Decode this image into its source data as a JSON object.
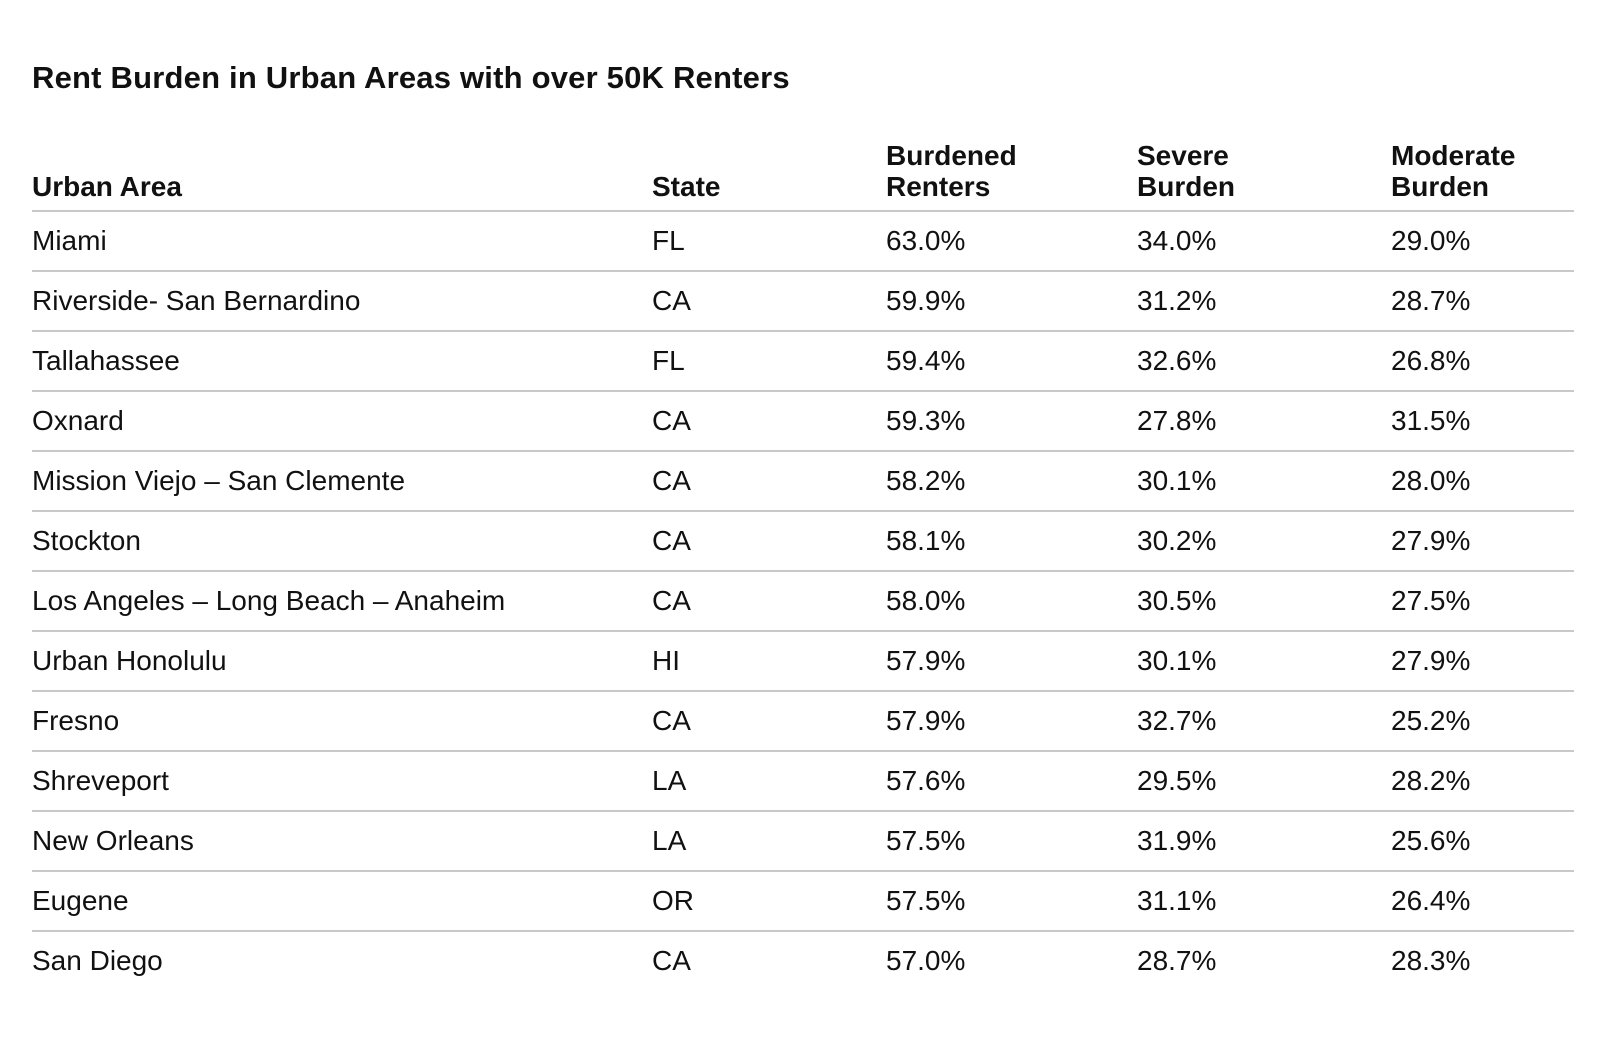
{
  "title": "Rent Burden in Urban Areas with over 50K Renters",
  "table": {
    "headers": {
      "urban_area": "Urban Area",
      "state": "State",
      "burdened_line1": "Burdened",
      "burdened_line2": "Renters",
      "severe_line1": "Severe",
      "severe_line2": "Burden",
      "moderate_line1": "Moderate",
      "moderate_line2": "Burden"
    },
    "rows": [
      {
        "area": "Miami",
        "state": "FL",
        "burdened": "63.0%",
        "severe": "34.0%",
        "moderate": "29.0%"
      },
      {
        "area": "Riverside- San Bernardino",
        "state": "CA",
        "burdened": "59.9%",
        "severe": "31.2%",
        "moderate": "28.7%"
      },
      {
        "area": "Tallahassee",
        "state": "FL",
        "burdened": "59.4%",
        "severe": "32.6%",
        "moderate": "26.8%"
      },
      {
        "area": "Oxnard",
        "state": "CA",
        "burdened": "59.3%",
        "severe": "27.8%",
        "moderate": "31.5%"
      },
      {
        "area": "Mission Viejo – San Clemente",
        "state": "CA",
        "burdened": "58.2%",
        "severe": "30.1%",
        "moderate": "28.0%"
      },
      {
        "area": "Stockton",
        "state": "CA",
        "burdened": "58.1%",
        "severe": "30.2%",
        "moderate": "27.9%"
      },
      {
        "area": "Los Angeles – Long Beach – Anaheim",
        "state": "CA",
        "burdened": "58.0%",
        "severe": "30.5%",
        "moderate": "27.5%"
      },
      {
        "area": "Urban Honolulu",
        "state": "HI",
        "burdened": "57.9%",
        "severe": "30.1%",
        "moderate": "27.9%"
      },
      {
        "area": "Fresno",
        "state": "CA",
        "burdened": "57.9%",
        "severe": "32.7%",
        "moderate": "25.2%"
      },
      {
        "area": "Shreveport",
        "state": "LA",
        "burdened": "57.6%",
        "severe": "29.5%",
        "moderate": "28.2%"
      },
      {
        "area": "New Orleans",
        "state": "LA",
        "burdened": "57.5%",
        "severe": "31.9%",
        "moderate": "25.6%"
      },
      {
        "area": "Eugene",
        "state": "OR",
        "burdened": "57.5%",
        "severe": "31.1%",
        "moderate": "26.4%"
      },
      {
        "area": "San Diego",
        "state": "CA",
        "burdened": "57.0%",
        "severe": "28.7%",
        "moderate": "28.3%"
      }
    ]
  }
}
